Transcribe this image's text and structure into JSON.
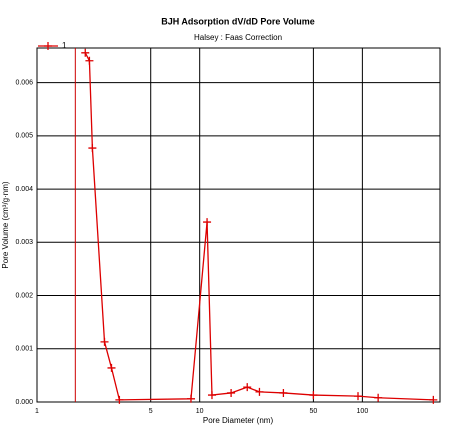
{
  "chart_data": {
    "type": "line",
    "title": "BJH Adsorption dV/dD Pore Volume",
    "subtitle": "Halsey : Faas Correction",
    "x_label": "Pore Diameter (nm)",
    "y_label": "Pore Volume (cm³/g·nm)",
    "x_log": true,
    "grid": true,
    "legend": "top-left",
    "xlim": [
      1,
      300
    ],
    "xticks": [
      1,
      5,
      10,
      50,
      100
    ],
    "ylim": [
      0,
      0.00665
    ],
    "yticks": [
      {
        "value": 0,
        "label": "0.000"
      },
      {
        "value": 0.001,
        "label": "0.001"
      },
      {
        "value": 0.002,
        "label": "0.002"
      },
      {
        "value": 0.003,
        "label": "0.003"
      },
      {
        "value": 0.004,
        "label": "0.004"
      },
      {
        "value": 0.005,
        "label": "0.005"
      },
      {
        "value": 0.006,
        "label": "0.006"
      }
    ],
    "reference_line_x": 1.72,
    "reference_color": "#cc0000",
    "series": [
      {
        "name": "1",
        "color": "#dd0000",
        "x": [
          1.98,
          2.1,
          2.19,
          2.6,
          2.87,
          3.21,
          8.84,
          11.1,
          11.9,
          15.6,
          19.6,
          23.3,
          32.7,
          50,
          94,
          125,
          273
        ],
        "values": [
          0.00656,
          0.00641,
          0.00477,
          0.00113,
          0.00064,
          4e-05,
          6e-05,
          0.00338,
          0.00013,
          0.00017,
          0.00028,
          0.00019,
          0.00017,
          0.00013,
          0.00011,
          8e-05,
          4e-05
        ]
      }
    ]
  }
}
